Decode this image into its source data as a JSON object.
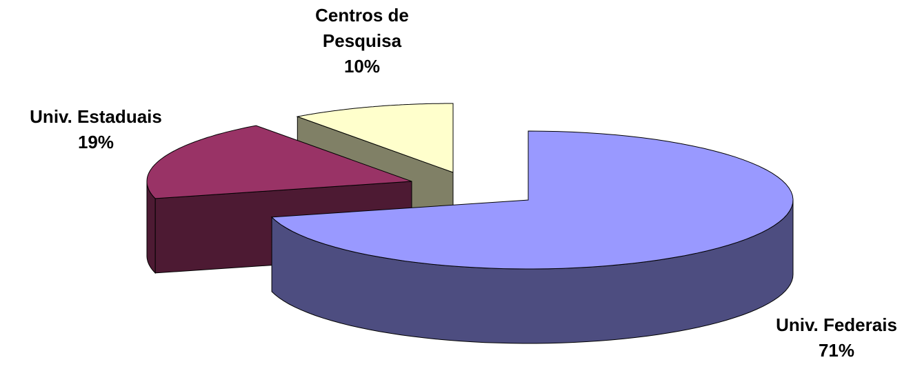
{
  "chart_data": {
    "type": "pie3d",
    "categories": [
      "Univ. Federais",
      "Univ. Estaduais",
      "Centros de Pesquisa"
    ],
    "values": [
      71,
      19,
      10
    ],
    "value_labels": [
      "71%",
      "19%",
      "10%"
    ],
    "colors": [
      "#9999ff",
      "#993366",
      "#ffffcc"
    ]
  }
}
